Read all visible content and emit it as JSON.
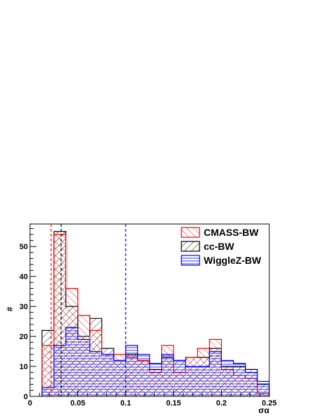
{
  "chart_data": {
    "type": "histogram",
    "xlabel": "σα",
    "ylabel": "#",
    "xlim": [
      0,
      0.25
    ],
    "ylim": [
      0,
      57.5
    ],
    "bin_width": 0.0125,
    "bin_edges": [
      0.0125,
      0.025,
      0.0375,
      0.05,
      0.0625,
      0.075,
      0.0875,
      0.1,
      0.1125,
      0.125,
      0.1375,
      0.15,
      0.1625,
      0.175,
      0.1875,
      0.2,
      0.2125,
      0.225,
      0.2375,
      0.25
    ],
    "x_ticks": [
      {
        "value": 0,
        "label": "0"
      },
      {
        "value": 0.05,
        "label": "0.05"
      },
      {
        "value": 0.1,
        "label": "0.1"
      },
      {
        "value": 0.15,
        "label": "0.15"
      },
      {
        "value": 0.2,
        "label": "0.2"
      },
      {
        "value": 0.25,
        "label": "0.25"
      }
    ],
    "y_ticks": [
      {
        "value": 0,
        "label": "0"
      },
      {
        "value": 10,
        "label": "10"
      },
      {
        "value": 20,
        "label": "20"
      },
      {
        "value": 30,
        "label": "30"
      },
      {
        "value": 40,
        "label": "40"
      },
      {
        "value": 50,
        "label": "50"
      }
    ],
    "series": [
      {
        "name": "cc-BW",
        "color": "#000000",
        "hatch": "diag-right",
        "values": [
          22,
          55,
          30,
          20,
          26,
          16,
          12,
          14,
          12,
          9,
          13,
          12,
          13,
          13,
          16,
          10,
          10,
          9,
          4
        ]
      },
      {
        "name": "CMASS-BW",
        "color": "#ff0000",
        "hatch": "diag-left",
        "values": [
          17,
          54,
          36,
          27,
          22,
          14,
          14,
          13,
          12,
          8,
          17,
          8,
          13,
          16,
          19,
          9,
          7,
          6,
          1
        ]
      },
      {
        "name": "WiggleZ-BW",
        "color": "#0000ff",
        "hatch": "horizontal",
        "values": [
          3,
          17,
          23,
          19,
          15,
          14,
          12,
          17,
          14,
          11,
          14,
          12,
          10,
          10,
          15,
          12,
          11,
          8,
          5
        ]
      }
    ],
    "vertical_lines": [
      {
        "x": 0.022,
        "color": "#ff0000",
        "series": "CMASS-BW"
      },
      {
        "x": 0.0325,
        "color": "#000000",
        "series": "cc-BW"
      },
      {
        "x": 0.1,
        "color": "#0000ff",
        "series": "WiggleZ-BW"
      }
    ],
    "legend": {
      "placement": "top-right",
      "items": [
        {
          "label": "CMASS-BW",
          "color": "#ff0000",
          "hatch": "diag-left"
        },
        {
          "label": "cc-BW",
          "color": "#000000",
          "hatch": "diag-right"
        },
        {
          "label": "WiggleZ-BW",
          "color": "#0000ff",
          "hatch": "horizontal"
        }
      ]
    }
  }
}
